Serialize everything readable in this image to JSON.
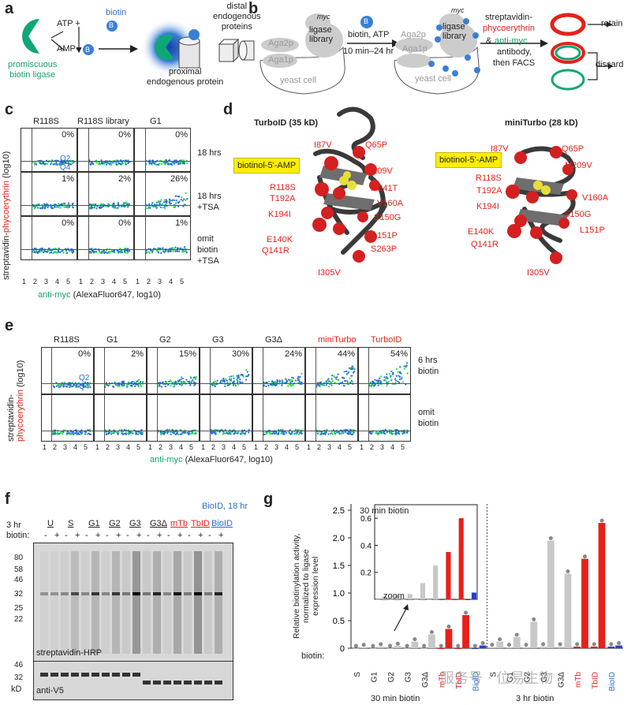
{
  "panels": {
    "a": "a",
    "b": "b",
    "c": "c",
    "d": "d",
    "e": "e",
    "f": "f",
    "g": "g"
  },
  "a": {
    "atp": "ATP +",
    "biotin": "biotin",
    "b": "B",
    "amp": "AMP-",
    "ligase": "promiscuous\nbiotin ligase",
    "proximal": "proximal\nendogenous protein",
    "distal": "distal\nendogenous\nproteins"
  },
  "b": {
    "myc": "myc",
    "ligase_library": "ligase\nlibrary",
    "aga2p": "Aga2p",
    "aga1p": "Aga1p",
    "yeast": "yeast cell",
    "cond": "biotin, ATP",
    "time": "10 min–24 hr",
    "strep": "streptavidin-",
    "phyco": "phycoerythrin",
    "amp": "& ",
    "antimyc": "anti-myc",
    "antibody": "antibody,",
    "facs": "then FACS",
    "retain": "retain",
    "discard": "discard"
  },
  "c": {
    "cols": [
      "R118S",
      "R118S library",
      "G1"
    ],
    "rows": [
      {
        "label": "18 hrs",
        "pcts": [
          "0%",
          "0%",
          "0%"
        ]
      },
      {
        "label": "18 hrs\n+TSA",
        "pcts": [
          "1%",
          "2%",
          "26%"
        ]
      },
      {
        "label": "omit\nbiotin\n+TSA",
        "pcts": [
          "0%",
          "0%",
          "1%"
        ]
      }
    ],
    "q2": "Q2",
    "q4": "Q4",
    "ylabel_a": "streptavidin-",
    "ylabel_b": "phycoerythrin",
    "ylabel_c": " (log10)",
    "xlabel_a": "anti-myc",
    "xlabel_b": " (AlexaFluor647, log10)",
    "ticks": [
      "1",
      "2",
      "3",
      "4",
      "5"
    ]
  },
  "d": {
    "turbo": "TurboID (35 kD)",
    "mini": "miniTurbo (28 kD)",
    "ligand": "biotinol-5'-AMP",
    "turbo_muts": [
      "I87V",
      "Q65P",
      "M209V",
      "R118S",
      "T192A",
      "M241T",
      "V160A",
      "K194I",
      "S150G",
      "L151P",
      "E140K",
      "Q141R",
      "S263P",
      "I305V"
    ],
    "mini_muts": [
      "I87V",
      "Q65P",
      "M209V",
      "R118S",
      "T192A",
      "V160A",
      "K194I",
      "S150G",
      "L151P",
      "E140K",
      "Q141R",
      "I305V"
    ]
  },
  "e": {
    "cols": [
      "R118S",
      "G1",
      "G2",
      "G3",
      "G3Δ",
      "miniTurbo",
      "TurboID"
    ],
    "pcts": [
      "0%",
      "2%",
      "15%",
      "30%",
      "24%",
      "44%",
      "54%"
    ],
    "row1": "6 hrs\nbiotin",
    "row2": "omit\nbiotin",
    "q2": "Q2",
    "q4": "Q4",
    "ylabel_a": "streptavidin-",
    "ylabel_b": "phycoerythrin",
    "ylabel_c": " (log10)",
    "xlabel_a": "anti-myc",
    "xlabel_b": " (AlexaFluor647, log10)",
    "ticks": [
      "1",
      "2",
      "3",
      "4",
      "5"
    ]
  },
  "f": {
    "groups": [
      "U",
      "S",
      "G1",
      "G2",
      "G3",
      "G3Δ",
      "mTb",
      "TbID",
      "BioID"
    ],
    "bioid18": "BioID, 18 hr",
    "row_3hr": "3 hr",
    "row_biotin": "biotin:",
    "signs": [
      "-",
      "+",
      "-",
      "+",
      "-",
      "+",
      "-",
      "+",
      "-",
      "+",
      "-",
      "+",
      "-",
      "+",
      "-",
      "+",
      "-",
      "+"
    ],
    "mw_top": [
      "80",
      "58",
      "46",
      "32",
      "25",
      "22"
    ],
    "mw_bot": [
      "46",
      "32"
    ],
    "kd": "kD",
    "strep": "streptavidin-HRP",
    "v5": "anti-V5"
  },
  "g": {
    "ylabel": "Relative biotinylation activity,\nnormalized to ligase\nexpression level",
    "yticks": [
      "0",
      "0.5",
      "1.0",
      "1.5",
      "2.0",
      "2.5"
    ],
    "inset_title": "30 min biotin",
    "inset_yticks": [
      "0.2",
      "0.4",
      "0.6"
    ],
    "zoom": "zoom",
    "biotin": "biotin:",
    "xlabels": [
      "S",
      "G1",
      "G2",
      "G3",
      "G3Δ",
      "mTb",
      "TbID",
      "BioID"
    ],
    "left": "30 min biotin",
    "right": "3 hr biotin",
    "colors": {
      "gray": "#c8c8c8",
      "red": "#e8201a",
      "blue": "#2a3fd4"
    }
  },
  "chart_data": {
    "type": "bar",
    "title": "",
    "ylabel": "Relative biotinylation activity, normalized to ligase expression level",
    "ylim": [
      0,
      2.5
    ],
    "categories": [
      "S",
      "G1",
      "G2",
      "G3",
      "G3Δ",
      "mTb",
      "TbID",
      "BioID"
    ],
    "series": [
      {
        "name": "30 min biotin (-)",
        "values": [
          0.0,
          0.0,
          0.0,
          0.0,
          0.0,
          0.0,
          0.0,
          0.0
        ]
      },
      {
        "name": "30 min biotin (+)",
        "values": [
          0.02,
          0.03,
          0.04,
          0.12,
          0.25,
          0.35,
          0.6,
          0.05
        ]
      },
      {
        "name": "3 hr biotin (-)",
        "values": [
          0.02,
          0.02,
          0.02,
          0.03,
          0.03,
          0.03,
          0.03,
          0.03
        ]
      },
      {
        "name": "3 hr biotin (+)",
        "values": [
          0.12,
          0.2,
          0.48,
          1.95,
          1.35,
          1.62,
          2.27,
          0.05
        ]
      }
    ]
  },
  "watermark": "服务号 · 位易生物"
}
